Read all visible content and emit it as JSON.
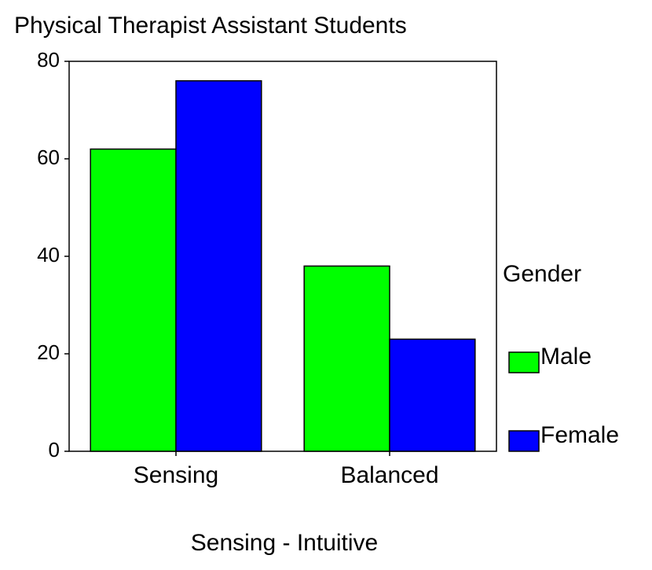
{
  "chart_data": {
    "type": "bar",
    "title": "Physical Therapist Assistant Students",
    "x_label": "Sensing - Intuitive",
    "legend_title": "Gender",
    "categories": [
      "Sensing",
      "Balanced"
    ],
    "series": [
      {
        "name": "Male",
        "color": "#00ff00",
        "values": [
          62,
          38
        ]
      },
      {
        "name": "Female",
        "color": "#0000ff",
        "values": [
          76,
          23
        ]
      }
    ],
    "ylim": [
      0,
      80
    ],
    "yticks": [
      0,
      20,
      40,
      60,
      80
    ],
    "legend": "right"
  }
}
